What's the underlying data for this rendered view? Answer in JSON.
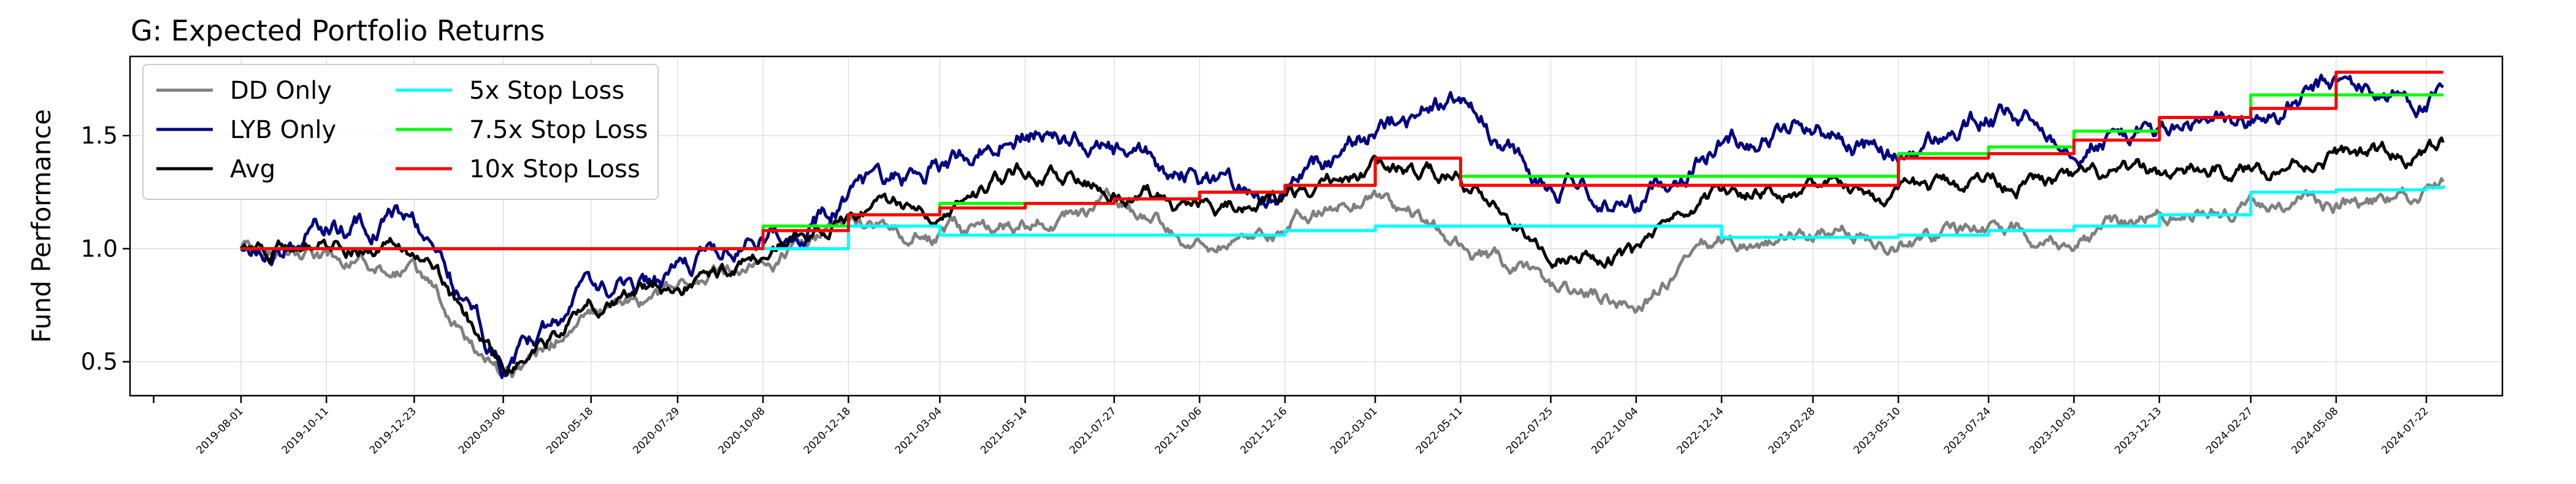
{
  "chart_data": {
    "type": "line",
    "title": "G: Expected Portfolio Returns",
    "xlabel": "",
    "ylabel": "Fund Performance",
    "ylim": [
      0.35,
      1.85
    ],
    "yticks": [
      "0.5",
      "1.0",
      "1.5"
    ],
    "grid": true,
    "legend_placement": "upper-left",
    "x_tick_labels": [
      "2019-08-01",
      "2019-10-11",
      "2019-12-23",
      "2020-03-06",
      "2020-05-18",
      "2020-07-29",
      "2020-10-08",
      "2020-12-18",
      "2021-03-04",
      "2021-05-14",
      "2021-07-27",
      "2021-10-06",
      "2021-12-16",
      "2022-03-01",
      "2022-05-11",
      "2022-07-25",
      "2022-10-04",
      "2022-12-14",
      "2023-02-28",
      "2023-05-10",
      "2023-07-24",
      "2023-10-03",
      "2023-12-13",
      "2024-02-27",
      "2024-05-08",
      "2024-07-22"
    ],
    "x": [
      "2019-08-01",
      "2019-10-11",
      "2019-12-23",
      "2020-03-06",
      "2020-05-18",
      "2020-07-29",
      "2020-10-08",
      "2020-12-18",
      "2021-03-04",
      "2021-05-14",
      "2021-07-27",
      "2021-10-06",
      "2021-12-16",
      "2022-03-01",
      "2022-05-11",
      "2022-07-25",
      "2022-10-04",
      "2022-12-14",
      "2023-02-28",
      "2023-05-10",
      "2023-07-24",
      "2023-10-03",
      "2023-12-13",
      "2024-02-27",
      "2024-05-08",
      "2024-07-22",
      "2024-08-05"
    ],
    "series": [
      {
        "name": "DD Only",
        "color": "#808080",
        "values": [
          1.0,
          0.95,
          0.9,
          0.42,
          0.72,
          0.8,
          0.9,
          1.1,
          1.05,
          1.12,
          1.18,
          1.02,
          1.1,
          1.25,
          1.0,
          0.82,
          0.75,
          1.02,
          1.05,
          1.05,
          1.1,
          1.05,
          1.15,
          1.18,
          1.2,
          1.22,
          1.28
        ]
      },
      {
        "name": "LYB Only",
        "color": "#000080",
        "values": [
          1.0,
          1.1,
          1.15,
          0.48,
          0.78,
          0.88,
          1.05,
          1.22,
          1.38,
          1.55,
          1.4,
          1.32,
          1.25,
          1.52,
          1.65,
          1.28,
          1.2,
          1.48,
          1.55,
          1.4,
          1.58,
          1.5,
          1.52,
          1.55,
          1.72,
          1.65,
          1.65
        ]
      },
      {
        "name": "Avg",
        "color": "#000000",
        "values": [
          1.0,
          1.02,
          1.0,
          0.45,
          0.75,
          0.83,
          0.95,
          1.18,
          1.2,
          1.35,
          1.28,
          1.18,
          1.2,
          1.38,
          1.3,
          1.02,
          0.95,
          1.25,
          1.3,
          1.22,
          1.32,
          1.28,
          1.32,
          1.35,
          1.42,
          1.4,
          1.45
        ]
      },
      {
        "name": "5x Stop Loss",
        "color": "#00ffff",
        "values": [
          1.0,
          1.0,
          1.0,
          1.0,
          1.0,
          1.0,
          1.0,
          1.1,
          1.06,
          1.06,
          1.06,
          1.06,
          1.08,
          1.1,
          1.1,
          1.1,
          1.1,
          1.05,
          1.05,
          1.06,
          1.08,
          1.1,
          1.15,
          1.25,
          1.26,
          1.27,
          1.28
        ]
      },
      {
        "name": "7.5x Stop Loss",
        "color": "#00ff00",
        "values": [
          1.0,
          1.0,
          1.0,
          1.0,
          1.0,
          1.0,
          1.1,
          1.15,
          1.2,
          1.2,
          1.22,
          1.25,
          1.28,
          1.4,
          1.32,
          1.32,
          1.32,
          1.32,
          1.32,
          1.42,
          1.45,
          1.52,
          1.58,
          1.68,
          1.68,
          1.68,
          1.68
        ]
      },
      {
        "name": "10x Stop Loss",
        "color": "#ff0000",
        "values": [
          1.0,
          1.0,
          1.0,
          1.0,
          1.0,
          1.0,
          1.08,
          1.15,
          1.18,
          1.2,
          1.22,
          1.25,
          1.28,
          1.4,
          1.28,
          1.28,
          1.28,
          1.28,
          1.28,
          1.4,
          1.42,
          1.48,
          1.58,
          1.62,
          1.78,
          1.78,
          1.78
        ]
      }
    ]
  }
}
